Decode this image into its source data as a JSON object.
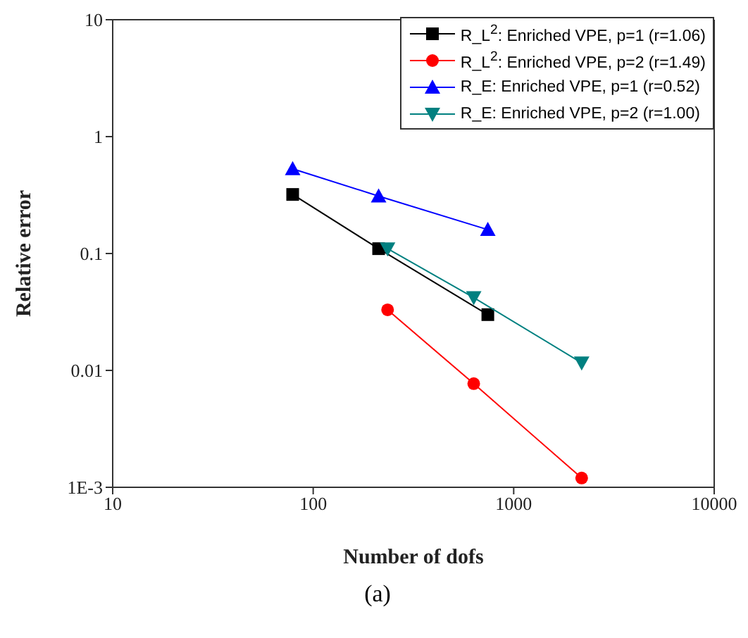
{
  "chart_data": {
    "type": "line",
    "xlabel": "Number of dofs",
    "ylabel": "Relative error",
    "log": "xy",
    "xlim": [
      10,
      10000
    ],
    "xticks": [
      10,
      100,
      1000,
      10000
    ],
    "ylim": [
      0.001,
      10
    ],
    "yticks": [
      {
        "value": 0.001,
        "label": "1E-3"
      },
      0.01,
      0.1,
      1,
      10
    ],
    "grid": false,
    "legend": "top right",
    "line_style": "solid",
    "annotations": [
      "(a)"
    ],
    "series": [
      {
        "name": "R_L$^{2}$: Enriched VPE, p=1 (r=1.06)",
        "color": "#000000",
        "marker": "square",
        "x": [
          79,
          212,
          743
        ],
        "values": [
          0.32,
          0.11,
          0.03
        ]
      },
      {
        "name": "R_L$^{2}$: Enriched VPE, p=2 (r=1.49)",
        "color": "#ff0000",
        "marker": "circle",
        "x": [
          235,
          632,
          2183
        ],
        "values": [
          0.033,
          0.0077,
          0.0012
        ]
      },
      {
        "name": "R_E: Enriched VPE, p=1 (r=0.52)",
        "color": "#0000ff",
        "marker": "triangle",
        "x": [
          79,
          212,
          743
        ],
        "values": [
          0.53,
          0.31,
          0.16
        ]
      },
      {
        "name": "R_E: Enriched VPE, p=2 (r=1.00)",
        "color": "#008080",
        "marker": "triangle-down",
        "x": [
          235,
          632,
          2183
        ],
        "values": [
          0.11,
          0.042,
          0.0116
        ]
      }
    ]
  }
}
